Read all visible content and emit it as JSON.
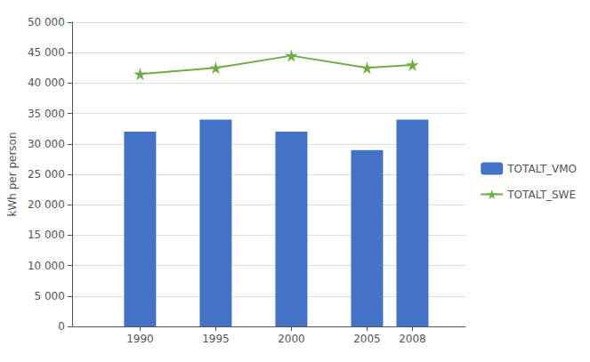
{
  "chart_data": {
    "type": "bar",
    "x": [
      1990,
      1995,
      2000,
      2005,
      2008
    ],
    "series": [
      {
        "name": "TOTALT_VMO",
        "type": "bar",
        "color": "#4472C4",
        "values": [
          32000,
          34000,
          32000,
          29000,
          34000
        ]
      },
      {
        "name": "TOTALT_SWE",
        "type": "line",
        "color": "#70AD47",
        "marker": "star",
        "values": [
          41500,
          42500,
          44500,
          42500,
          43000
        ]
      }
    ],
    "ylabel": "kWh per person",
    "xlim": [
      1985.5,
      2011.5
    ],
    "xticks": [
      1990,
      1995,
      2000,
      2005,
      2008
    ],
    "ylim": [
      0,
      50000
    ],
    "yticks": [
      0,
      {
        "value": 5000,
        "label": "5 000"
      },
      {
        "value": 10000,
        "label": "10 000"
      },
      {
        "value": 15000,
        "label": "15 000"
      },
      {
        "value": 20000,
        "label": "20 000"
      },
      {
        "value": 25000,
        "label": "25 000"
      },
      {
        "value": 30000,
        "label": "30 000"
      },
      {
        "value": 35000,
        "label": "35 000"
      },
      {
        "value": 40000,
        "label": "40 000"
      },
      {
        "value": 45000,
        "label": "45 000"
      },
      {
        "value": 50000,
        "label": "50 000"
      }
    ],
    "grid": true,
    "legend": "right"
  }
}
